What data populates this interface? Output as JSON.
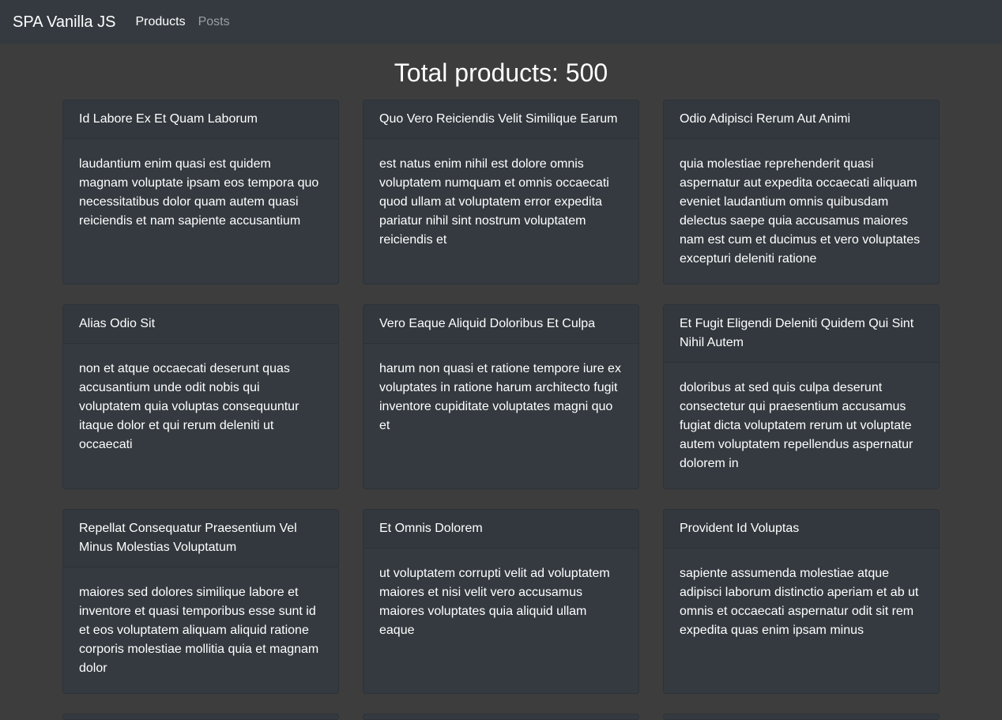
{
  "navbar": {
    "brand": "SPA Vanilla JS",
    "links": [
      {
        "label": "Products",
        "active": true
      },
      {
        "label": "Posts",
        "active": false
      }
    ]
  },
  "main": {
    "total_label": "Total products: 500"
  },
  "products": [
    {
      "title": "Id Labore Ex Et Quam Laborum",
      "body": "laudantium enim quasi est quidem magnam voluptate ipsam eos tempora quo necessitatibus dolor quam autem quasi reiciendis et nam sapiente accusantium"
    },
    {
      "title": "Quo Vero Reiciendis Velit Similique Earum",
      "body": "est natus enim nihil est dolore omnis voluptatem numquam et omnis occaecati quod ullam at voluptatem error expedita pariatur nihil sint nostrum voluptatem reiciendis et"
    },
    {
      "title": "Odio Adipisci Rerum Aut Animi",
      "body": "quia molestiae reprehenderit quasi aspernatur aut expedita occaecati aliquam eveniet laudantium omnis quibusdam delectus saepe quia accusamus maiores nam est cum et ducimus et vero voluptates excepturi deleniti ratione"
    },
    {
      "title": "Alias Odio Sit",
      "body": "non et atque occaecati deserunt quas accusantium unde odit nobis qui voluptatem quia voluptas consequuntur itaque dolor et qui rerum deleniti ut occaecati"
    },
    {
      "title": "Vero Eaque Aliquid Doloribus Et Culpa",
      "body": "harum non quasi et ratione tempore iure ex voluptates in ratione harum architecto fugit inventore cupiditate voluptates magni quo et"
    },
    {
      "title": "Et Fugit Eligendi Deleniti Quidem Qui Sint Nihil Autem",
      "body": "doloribus at sed quis culpa deserunt consectetur qui praesentium accusamus fugiat dicta voluptatem rerum ut voluptate autem voluptatem repellendus aspernatur dolorem in"
    },
    {
      "title": "Repellat Consequatur Praesentium Vel Minus Molestias Voluptatum",
      "body": "maiores sed dolores similique labore et inventore et quasi temporibus esse sunt id et eos voluptatem aliquam aliquid ratione corporis molestiae mollitia quia et magnam dolor"
    },
    {
      "title": "Et Omnis Dolorem",
      "body": "ut voluptatem corrupti velit ad voluptatem maiores et nisi velit vero accusamus maiores voluptates quia aliquid ullam eaque"
    },
    {
      "title": "Provident Id Voluptas",
      "body": "sapiente assumenda molestiae atque adipisci laborum distinctio aperiam et ab ut omnis et occaecati aspernatur odit sit rem expedita quas enim ipsam minus"
    }
  ]
}
